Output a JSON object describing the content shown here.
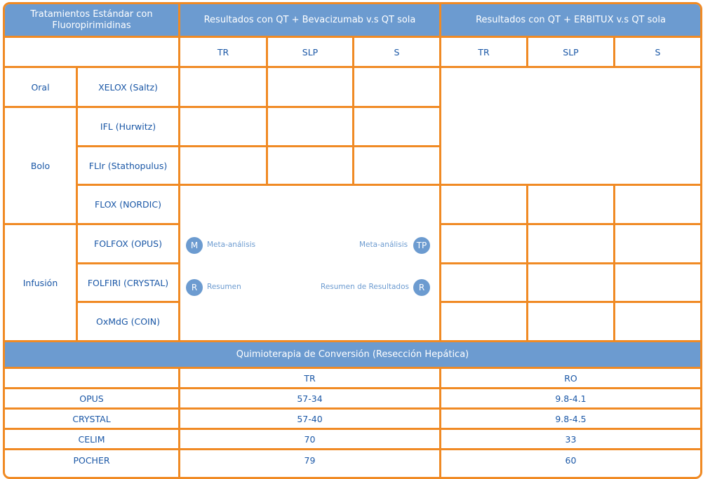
{
  "colors": {
    "border": "#f08a24",
    "header_bg": "#6c9bd0",
    "text": "#1a57a6"
  },
  "header": {
    "treatments": "Tratamientos Estándar con Fluoropirimidinas",
    "bev": "Resultados con QT + Bevacizumab v.s QT sola",
    "erb": "Resultados con QT + ERBITUX v.s QT sola"
  },
  "subheaders": [
    "TR",
    "SLP",
    "S",
    "TR",
    "SLP",
    "S"
  ],
  "groups": [
    "Oral",
    "Bolo",
    "Infusión"
  ],
  "regimens": [
    "XELOX (Saltz)",
    "IFL (Hurwitz)",
    "FLIr (Stathopulus)",
    "FLOX (NORDIC)",
    "FOLFOX (OPUS)",
    "FOLFIRI (CRYSTAL)",
    "OxMdG (COIN)"
  ],
  "legend": {
    "m_icon": "M",
    "m_label": "Meta-análisis",
    "tp_label": "Meta-análisis",
    "tp_icon": "TP",
    "r_icon": "R",
    "r_label": "Resumen",
    "r2_label": "Resumen de Resultados",
    "r2_icon": "R"
  },
  "conversion": {
    "title": "Quimioterapia de Conversión (Resección Hepática)",
    "columns": [
      "",
      "TR",
      "RO"
    ],
    "rows": [
      [
        "OPUS",
        "57-34",
        "9.8-4.1"
      ],
      [
        "CRYSTAL",
        "57-40",
        "9.8-4.5"
      ],
      [
        "CELIM",
        "70",
        "33"
      ],
      [
        "POCHER",
        "79",
        "60"
      ]
    ]
  }
}
